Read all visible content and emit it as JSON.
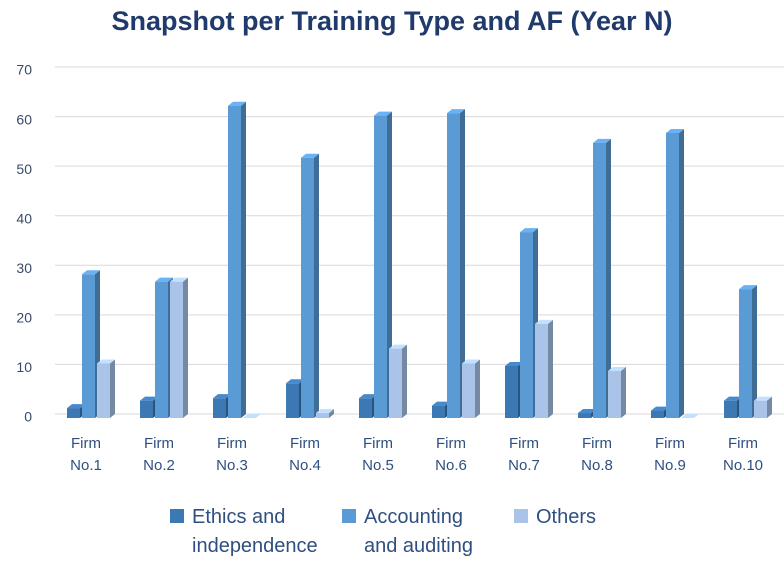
{
  "chart_data": {
    "type": "bar",
    "title": "Snapshot per Training Type and AF (Year N)",
    "categories": [
      "Firm No.1",
      "Firm No.2",
      "Firm No.3",
      "Firm No.4",
      "Firm No.5",
      "Firm No.6",
      "Firm No.7",
      "Firm No.8",
      "Firm No.9",
      "Firm No.10"
    ],
    "series": [
      {
        "name": "Ethics and independence",
        "color": "#3c78b4",
        "values": [
          2,
          3.5,
          4,
          7,
          4,
          2.5,
          10.5,
          1,
          1.5,
          3.5
        ]
      },
      {
        "name": "Accounting and auditing",
        "color": "#5b9bd5",
        "values": [
          29,
          27.5,
          63,
          52.5,
          61,
          61.5,
          37.5,
          55.5,
          57.5,
          26
        ]
      },
      {
        "name": "Others",
        "color": "#a9c4e8",
        "values": [
          11,
          27.5,
          0,
          1,
          14,
          11,
          19,
          9.5,
          0,
          3.5
        ]
      }
    ],
    "ylim": [
      0,
      70
    ],
    "yticks": [
      0,
      10,
      20,
      30,
      40,
      50,
      60,
      70
    ],
    "grid": true,
    "legend": "bottom"
  }
}
